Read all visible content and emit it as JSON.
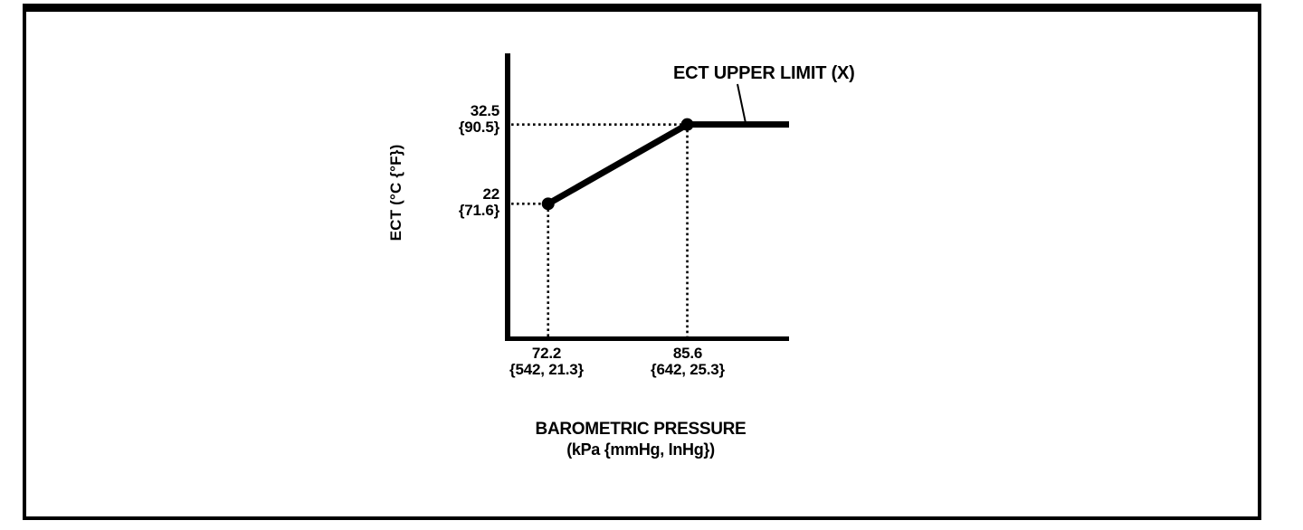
{
  "chart_data": {
    "type": "line",
    "title": "",
    "xlabel": "BAROMETRIC PRESSURE",
    "xlabel_units": "(kPa {mmHg, InHg})",
    "ylabel": "ECT (°C {°F})",
    "annotation": "ECT UPPER LIMIT (X)",
    "grid": false,
    "legend": "none",
    "line_color": "#000000",
    "series": [
      {
        "name": "ECT upper limit (X)",
        "points": [
          {
            "x": 72.2,
            "y": 22
          },
          {
            "x": 85.6,
            "y": 32.5
          }
        ],
        "flat_to_x": 95.4
      }
    ],
    "x_ticks": [
      {
        "value": 72.2,
        "label": "72.2",
        "alt": "{542, 21.3}"
      },
      {
        "value": 85.6,
        "label": "85.6",
        "alt": "{642, 25.3}"
      }
    ],
    "y_ticks": [
      {
        "value": 32.5,
        "label": "32.5",
        "alt": "{90.5}"
      },
      {
        "value": 22,
        "label": "22",
        "alt": "{71.6}"
      }
    ],
    "xlim": [
      68.3,
      95.4
    ],
    "ylim": [
      4.2,
      41.8
    ]
  }
}
